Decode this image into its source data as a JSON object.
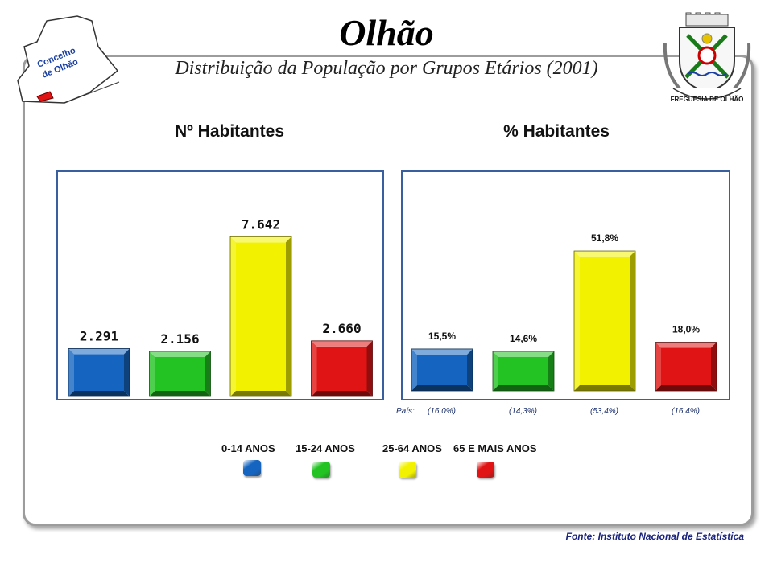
{
  "header": {
    "title": "Olhão",
    "subtitle": "Distribuição da População por Grupos Etários (2001)",
    "map_label_line1": "Concelho",
    "map_label_line2": "de Olhão",
    "crest_text": "FREGUESIA DE OLHÃO"
  },
  "panels": {
    "left_heading": "Nº Habitantes",
    "right_heading": "% Habitantes"
  },
  "colors": {
    "blue": "#1565c0",
    "green": "#22c322",
    "yellow": "#f2f200",
    "red": "#e01414",
    "panel_border": "#3a5f9e"
  },
  "chart_data": [
    {
      "type": "bar",
      "title": "Nº Habitantes",
      "categories": [
        "0-14 ANOS",
        "15-24 ANOS",
        "25-64 ANOS",
        "65 E MAIS ANOS"
      ],
      "values": [
        2291,
        2156,
        7642,
        2660
      ],
      "labels": [
        "2.291",
        "2.156",
        "7.642",
        "2.660"
      ],
      "ylim": [
        0,
        10000
      ]
    },
    {
      "type": "bar",
      "title": "% Habitantes",
      "categories": [
        "0-14 ANOS",
        "15-24 ANOS",
        "25-64 ANOS",
        "65 E MAIS ANOS"
      ],
      "values": [
        15.5,
        14.6,
        51.8,
        18.0
      ],
      "labels": [
        "15,5%",
        "14,6%",
        "51,8%",
        "18,0%"
      ],
      "ylim": [
        0,
        67
      ],
      "pais_label": "País:",
      "pais_values": [
        "(16,0%)",
        "(14,3%)",
        "(53,4%)",
        "(16,4%)"
      ]
    }
  ],
  "legend": [
    {
      "label": "0-14 ANOS",
      "color": "#1565c0"
    },
    {
      "label": "15-24 ANOS",
      "color": "#22c322"
    },
    {
      "label": "25-64 ANOS",
      "color": "#f2f200"
    },
    {
      "label": "65 E MAIS ANOS",
      "color": "#e01414"
    }
  ],
  "footer": {
    "source": "Fonte: Instituto Nacional de Estatística"
  }
}
